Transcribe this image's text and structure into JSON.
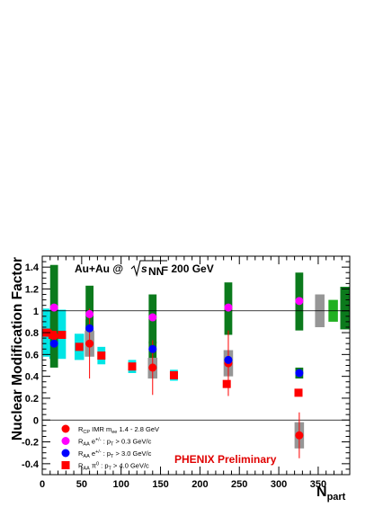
{
  "chart_data": {
    "type": "scatter",
    "title": "Au+Au @ √sNN = 200 GeV",
    "title_parts": {
      "prefix": "Au+Au @ ",
      "sqrt_sub": "NN",
      "suffix": " = 200 GeV"
    },
    "ylabel": "Nuclear Modification Factor",
    "xlabel_main": "N",
    "xlabel_sub": "part",
    "annotation": "PHENIX Preliminary",
    "xlim": [
      0,
      390
    ],
    "ylim": [
      -0.5,
      1.5
    ],
    "x_ticks": [
      "0",
      "50",
      "100",
      "150",
      "200",
      "250",
      "300",
      "350"
    ],
    "y_ticks": [
      "-0.4",
      "-0.2",
      "0",
      "0.2",
      "0.4",
      "0.6",
      "0.8",
      "1",
      "1.2",
      "1.4"
    ],
    "legend_placement": "bottom-left",
    "colors": {
      "rcp": "#ff0000",
      "e03": "#ff00ff",
      "e30": "#0000ff",
      "pi0": "#ff0000",
      "cyan_box": "#00e5e5",
      "green_box": "#0b7a1c",
      "gray_box": "#969696",
      "light_green_box": "#20b020"
    },
    "series": [
      {
        "key": "rcp",
        "marker": "circle",
        "legend": {
          "base": "R",
          "sub": "CP",
          "rest": " IMR m",
          "sub2": "ee",
          "tail": " 1.4 - 2.8 GeV"
        },
        "points": [
          {
            "x": 8,
            "y": 0.8,
            "err": 0.0
          },
          {
            "x": 15,
            "y": 0.77,
            "err": 0.0
          },
          {
            "x": 60,
            "y": 0.7,
            "err": 0.32
          },
          {
            "x": 140,
            "y": 0.48,
            "err": 0.25
          },
          {
            "x": 236,
            "y": 0.52,
            "err": 0.3
          },
          {
            "x": 326,
            "y": -0.14,
            "err": 0.21
          }
        ],
        "sys_boxes": [
          {
            "x": 326,
            "half_width": 6,
            "y0": -0.26,
            "y1": -0.02,
            "color": "gray_box"
          }
        ]
      },
      {
        "key": "e03",
        "marker": "circle",
        "legend": {
          "base": "R",
          "sub": "AA",
          "rest": " e",
          "sup": "+/-",
          "tail": " : p  > 0.3 GeV/c",
          "sub_t": "T"
        },
        "points": [
          {
            "x": 15,
            "y": 1.03,
            "err": 0.0
          },
          {
            "x": 60,
            "y": 0.97,
            "err": 0.0
          },
          {
            "x": 140,
            "y": 0.94,
            "err": 0.0
          },
          {
            "x": 236,
            "y": 1.03,
            "err": 0.0
          },
          {
            "x": 326,
            "y": 1.09,
            "err": 0.0
          }
        ],
        "sys_boxes": [
          {
            "x": 15,
            "half_width": 5,
            "y0": 0.72,
            "y1": 1.42,
            "color": "green_box"
          },
          {
            "x": 60,
            "half_width": 5,
            "y0": 0.7,
            "y1": 1.23,
            "color": "green_box"
          },
          {
            "x": 140,
            "half_width": 5,
            "y0": 0.7,
            "y1": 1.15,
            "color": "green_box"
          },
          {
            "x": 236,
            "half_width": 5,
            "y0": 0.78,
            "y1": 1.26,
            "color": "green_box"
          },
          {
            "x": 326,
            "half_width": 5,
            "y0": 0.82,
            "y1": 1.35,
            "color": "green_box"
          }
        ]
      },
      {
        "key": "e30",
        "marker": "circle",
        "legend": {
          "base": "R",
          "sub": "AA",
          "rest": " e",
          "sup": "+/-",
          "tail": " : p  > 3.0 GeV/c",
          "sub_t": "T"
        },
        "points": [
          {
            "x": 15,
            "y": 0.7,
            "err": 0.0
          },
          {
            "x": 60,
            "y": 0.84,
            "err": 0.0
          },
          {
            "x": 140,
            "y": 0.65,
            "err": 0.0
          },
          {
            "x": 236,
            "y": 0.55,
            "err": 0.0
          },
          {
            "x": 326,
            "y": 0.43,
            "err": 0.0
          }
        ],
        "sys_boxes": [
          {
            "x": 15,
            "half_width": 5,
            "y0": 0.48,
            "y1": 0.95,
            "color": "green_box"
          },
          {
            "x": 60,
            "half_width": 5,
            "y0": 0.62,
            "y1": 0.92,
            "color": "green_box"
          },
          {
            "x": 140,
            "half_width": 5,
            "y0": 0.52,
            "y1": 0.72,
            "color": "green_box"
          },
          {
            "x": 236,
            "half_width": 5,
            "y0": 0.46,
            "y1": 0.62,
            "color": "green_box"
          },
          {
            "x": 326,
            "half_width": 5,
            "y0": 0.38,
            "y1": 0.48,
            "color": "green_box"
          }
        ]
      },
      {
        "key": "pi0",
        "marker": "square",
        "legend": {
          "base": "R",
          "sub": "AA",
          "rest": " π",
          "sup": "0",
          "tail": " : p  > 4.0 GeV/c",
          "sub_t": "T"
        },
        "points": [
          {
            "x": 5,
            "y": 0.8,
            "err": 0.0
          },
          {
            "x": 13,
            "y": 0.78,
            "err": 0.0
          },
          {
            "x": 25,
            "y": 0.78,
            "err": 0.0
          },
          {
            "x": 47,
            "y": 0.67,
            "err": 0.0
          },
          {
            "x": 75,
            "y": 0.59,
            "err": 0.0
          },
          {
            "x": 114,
            "y": 0.49,
            "err": 0.0
          },
          {
            "x": 167,
            "y": 0.41,
            "err": 0.0
          },
          {
            "x": 234,
            "y": 0.33,
            "err": 0.0
          },
          {
            "x": 325,
            "y": 0.25,
            "err": 0.0
          }
        ],
        "sys_boxes": [
          {
            "x": 5,
            "half_width": 4,
            "y0": 0.58,
            "y1": 1.02,
            "color": "cyan_box"
          },
          {
            "x": 13,
            "half_width": 4,
            "y0": 0.56,
            "y1": 1.01,
            "color": "cyan_box"
          },
          {
            "x": 25,
            "half_width": 5,
            "y0": 0.56,
            "y1": 1.01,
            "color": "cyan_box"
          },
          {
            "x": 47,
            "half_width": 6,
            "y0": 0.55,
            "y1": 0.79,
            "color": "cyan_box"
          },
          {
            "x": 60,
            "half_width": 6,
            "y0": 0.58,
            "y1": 0.82,
            "color": "gray_box"
          },
          {
            "x": 75,
            "half_width": 5,
            "y0": 0.51,
            "y1": 0.67,
            "color": "cyan_box"
          },
          {
            "x": 114,
            "half_width": 5,
            "y0": 0.43,
            "y1": 0.55,
            "color": "cyan_box"
          },
          {
            "x": 140,
            "half_width": 6,
            "y0": 0.38,
            "y1": 0.57,
            "color": "gray_box"
          },
          {
            "x": 167,
            "half_width": 5,
            "y0": 0.36,
            "y1": 0.46,
            "color": "cyan_box"
          },
          {
            "x": 236,
            "half_width": 6,
            "y0": 0.4,
            "y1": 0.64,
            "color": "gray_box"
          }
        ]
      }
    ],
    "normalization_boxes": [
      {
        "x": 352,
        "half_width": 6,
        "y0": 0.85,
        "y1": 1.15,
        "color": "gray_box"
      },
      {
        "x": 369,
        "half_width": 6,
        "y0": 0.9,
        "y1": 1.1,
        "color": "light_green_box"
      },
      {
        "x": 384,
        "half_width": 6,
        "y0": 0.83,
        "y1": 1.22,
        "color": "green_box"
      }
    ]
  }
}
